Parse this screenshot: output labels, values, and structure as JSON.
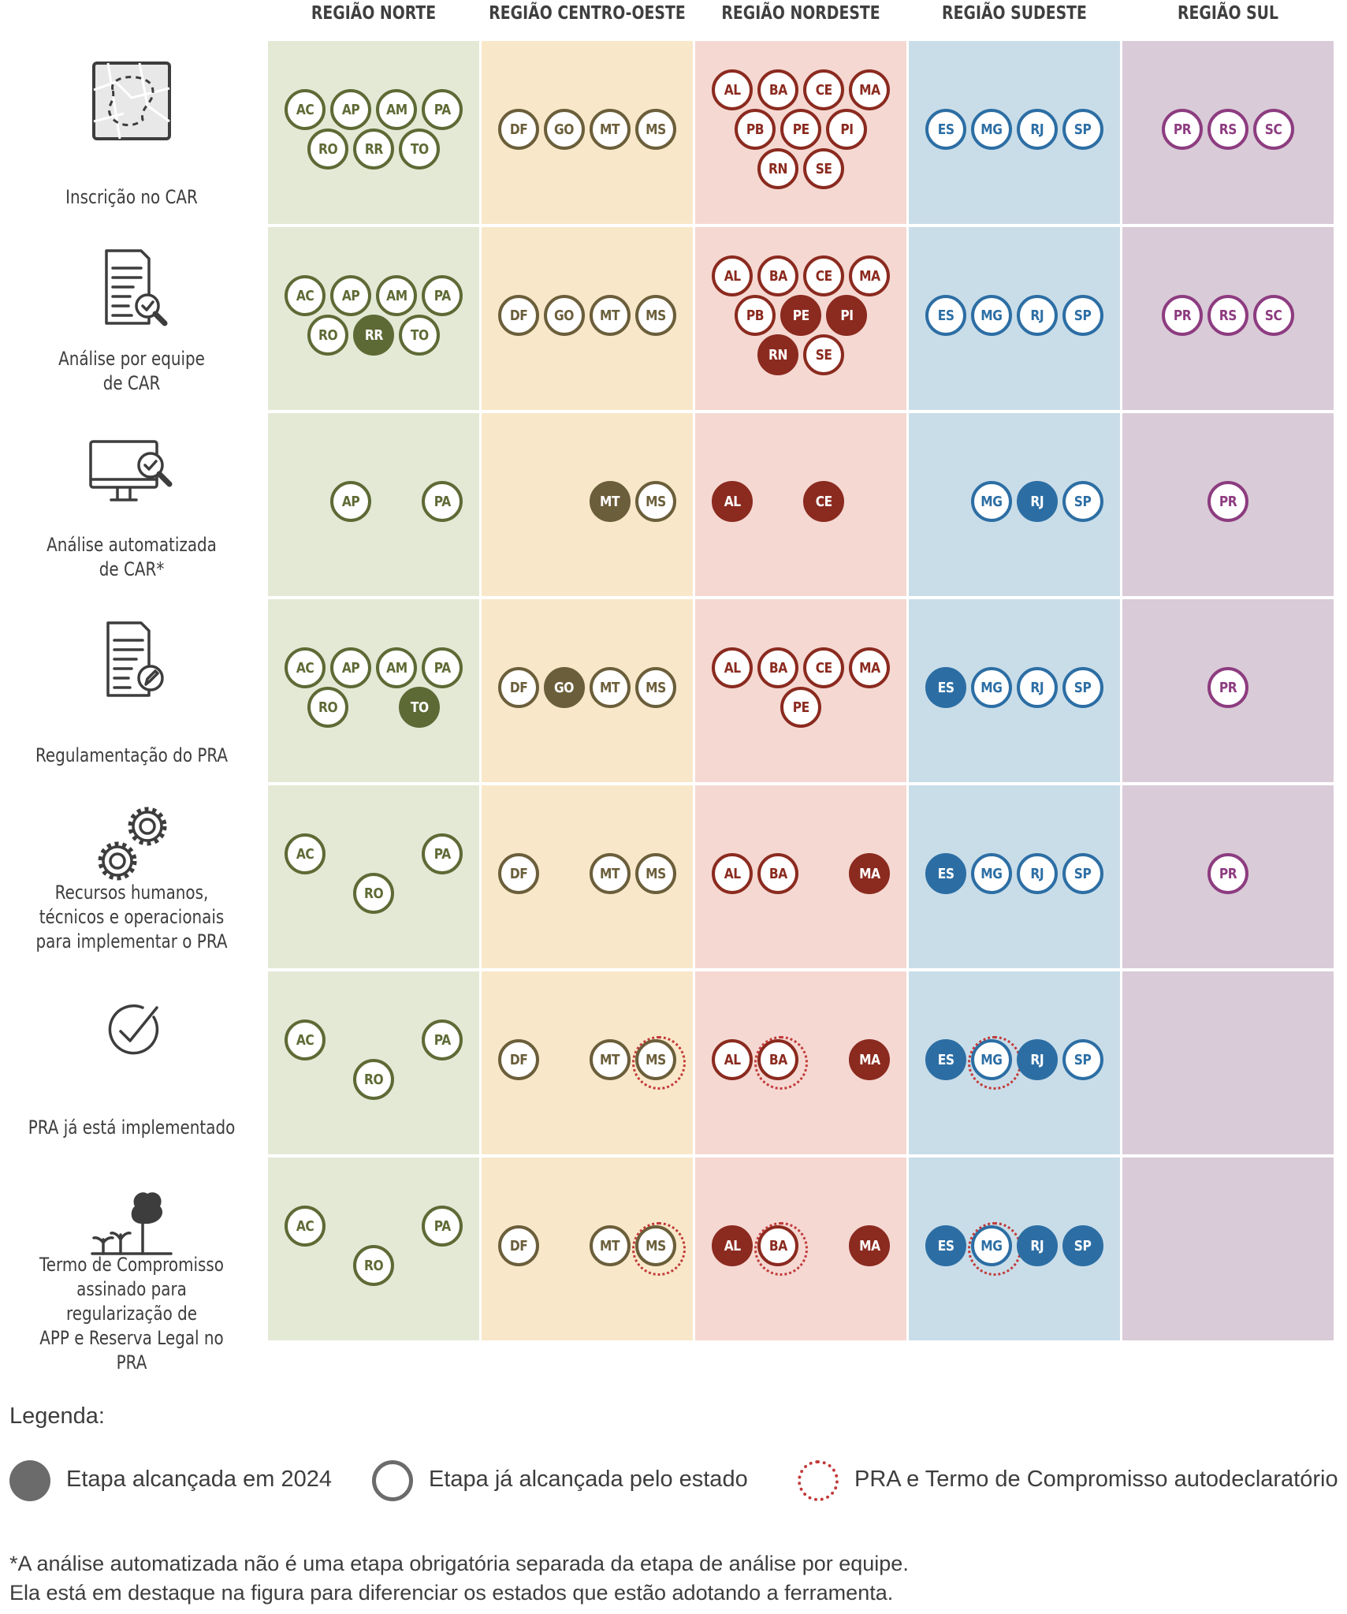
{
  "regions": [
    {
      "id": "norte",
      "label": "REGIÃO NORTE",
      "bg": "#e4e9d6",
      "color": "#5e6a35",
      "filled": "#5e6a35"
    },
    {
      "id": "centro",
      "label": "REGIÃO CENTRO-OESTE",
      "bg": "#f8e8c9",
      "color": "#6b5e3a",
      "filled": "#6b5e3a"
    },
    {
      "id": "nordeste",
      "label": "REGIÃO NORDESTE",
      "bg": "#f5d8d2",
      "color": "#8b2a1f",
      "filled": "#8b2a1f"
    },
    {
      "id": "sudeste",
      "label": "REGIÃO SUDESTE",
      "bg": "#c9dde8",
      "color": "#2c6ea4",
      "filled": "#2c6ea4"
    },
    {
      "id": "sul",
      "label": "REGIÃO SUL",
      "bg": "#d9cbd7",
      "color": "#8d3c80",
      "filled": "#8d3c80"
    }
  ],
  "stages": [
    {
      "label": "Inscrição no CAR",
      "icon": "map-icon",
      "cells": {
        "norte": {
          "rows": [
            [
              "AC",
              "AP",
              "AM",
              "PA"
            ],
            [
              "RO",
              "RR",
              "TO"
            ]
          ]
        },
        "centro": {
          "rows": [
            [
              "DF",
              "GO",
              "MT",
              "MS"
            ]
          ]
        },
        "nordeste": {
          "rows": [
            [
              "AL",
              "BA",
              "CE",
              "MA"
            ],
            [
              "PB",
              "PE",
              "PI"
            ],
            [
              "RN",
              "SE"
            ]
          ]
        },
        "sudeste": {
          "rows": [
            [
              "ES",
              "MG",
              "RJ",
              "SP"
            ]
          ]
        },
        "sul": {
          "rows": [
            [
              "PR",
              "RS",
              "SC"
            ]
          ]
        }
      }
    },
    {
      "label": "Análise por equipe\nde CAR",
      "icon": "document-search-icon",
      "cells": {
        "norte": {
          "rows": [
            [
              "AC",
              "AP",
              "AM",
              "PA"
            ],
            [
              "RO",
              "RR",
              "TO"
            ]
          ],
          "filled": [
            "RR"
          ]
        },
        "centro": {
          "rows": [
            [
              "DF",
              "GO",
              "MT",
              "MS"
            ]
          ]
        },
        "nordeste": {
          "rows": [
            [
              "AL",
              "BA",
              "CE",
              "MA"
            ],
            [
              "PB",
              "PE",
              "PI"
            ],
            [
              "RN",
              "SE"
            ]
          ],
          "filled": [
            "PE",
            "PI",
            "RN"
          ]
        },
        "sudeste": {
          "rows": [
            [
              "ES",
              "MG",
              "RJ",
              "SP"
            ]
          ]
        },
        "sul": {
          "rows": [
            [
              "PR",
              "RS",
              "SC"
            ]
          ]
        }
      }
    },
    {
      "label": "Análise automatizada\nde CAR*",
      "icon": "computer-search-icon",
      "cells": {
        "norte": {
          "rows": [
            [
              "",
              "AP",
              "",
              "PA"
            ]
          ]
        },
        "centro": {
          "rows": [
            [
              "",
              "",
              "MT",
              "MS"
            ]
          ],
          "filled": [
            "MT"
          ],
          "shift": 1
        },
        "nordeste": {
          "rows": [
            [
              "AL",
              "",
              "CE",
              ""
            ]
          ],
          "filled": [
            "AL",
            "CE"
          ]
        },
        "sudeste": {
          "rows": [
            [
              "",
              "MG",
              "RJ",
              "SP"
            ]
          ],
          "filled": [
            "RJ"
          ],
          "shift": 1
        },
        "sul": {
          "rows": [
            [
              "PR"
            ]
          ],
          "shift": 1
        }
      }
    },
    {
      "label": "Regulamentação do PRA",
      "icon": "document-pencil-icon",
      "cells": {
        "norte": {
          "rows": [
            [
              "AC",
              "AP",
              "AM",
              "PA"
            ],
            [
              "RO",
              "",
              "TO"
            ]
          ],
          "filled": [
            "TO"
          ],
          "shift": 0.35
        },
        "centro": {
          "rows": [
            [
              "DF",
              "GO",
              "MT",
              "MS"
            ]
          ],
          "filled": [
            "GO"
          ]
        },
        "nordeste": {
          "rows": [
            [
              "AL",
              "BA",
              "CE",
              "MA"
            ],
            [
              "",
              "PE",
              ""
            ]
          ]
        },
        "sudeste": {
          "rows": [
            [
              "ES",
              "MG",
              "RJ",
              "SP"
            ]
          ],
          "filled": [
            "ES"
          ]
        },
        "sul": {
          "rows": [
            [
              "PR"
            ]
          ]
        }
      }
    },
    {
      "label": "Recursos humanos,\ntécnicos e operacionais\npara implementar o PRA",
      "icon": "gears-icon",
      "cells": {
        "norte": {
          "rows": [
            [
              "AC",
              "",
              "",
              "PA"
            ],
            [
              "RO"
            ]
          ]
        },
        "centro": {
          "rows": [
            [
              "DF",
              "",
              "MT",
              "MS"
            ]
          ]
        },
        "nordeste": {
          "rows": [
            [
              "AL",
              "BA",
              "",
              "MA"
            ]
          ],
          "filled": [
            "MA"
          ]
        },
        "sudeste": {
          "rows": [
            [
              "ES",
              "MG",
              "RJ",
              "SP"
            ]
          ],
          "filled": [
            "ES"
          ]
        },
        "sul": {
          "rows": [
            [
              "PR"
            ]
          ]
        }
      }
    },
    {
      "label": "PRA já está implementado",
      "icon": "check-circle-icon",
      "cells": {
        "norte": {
          "rows": [
            [
              "AC",
              "",
              "",
              "PA"
            ],
            [
              "RO"
            ]
          ]
        },
        "centro": {
          "rows": [
            [
              "DF",
              "",
              "MT",
              "MS"
            ]
          ],
          "dotted": [
            "MS"
          ]
        },
        "nordeste": {
          "rows": [
            [
              "AL",
              "BA",
              "",
              "MA"
            ]
          ],
          "filled": [
            "MA"
          ],
          "dotted": [
            "BA"
          ]
        },
        "sudeste": {
          "rows": [
            [
              "ES",
              "MG",
              "RJ",
              "SP"
            ]
          ],
          "filled": [
            "ES",
            "RJ"
          ],
          "dotted": [
            "MG"
          ]
        },
        "sul": {
          "rows": []
        }
      }
    },
    {
      "label": "Termo de Compromisso\nassinado para regularização de\nAPP e Reserva Legal no PRA",
      "icon": "tree-sprouts-icon",
      "cells": {
        "norte": {
          "rows": [
            [
              "AC",
              "",
              "",
              "PA"
            ],
            [
              "RO"
            ]
          ]
        },
        "centro": {
          "rows": [
            [
              "DF",
              "",
              "MT",
              "MS"
            ]
          ],
          "dotted": [
            "MS"
          ]
        },
        "nordeste": {
          "rows": [
            [
              "AL",
              "BA",
              "",
              "MA"
            ]
          ],
          "filled": [
            "AL",
            "MA"
          ],
          "dotted": [
            "BA"
          ]
        },
        "sudeste": {
          "rows": [
            [
              "ES",
              "MG",
              "RJ",
              "SP"
            ]
          ],
          "filled": [
            "ES",
            "RJ",
            "SP"
          ],
          "dotted": [
            "MG"
          ]
        },
        "sul": {
          "rows": []
        }
      }
    }
  ],
  "legend": {
    "title": "Legenda:",
    "items": [
      {
        "kind": "filled",
        "label": "Etapa alcançada em 2024",
        "color": "#6b6b6b"
      },
      {
        "kind": "outline",
        "label": "Etapa já alcançada pelo estado",
        "color": "#6b6b6b"
      },
      {
        "kind": "dotted",
        "label": "PRA e Termo de Compromisso autodeclaratório",
        "color": "#c23a3a"
      }
    ]
  },
  "footnote": "*A análise automatizada não é uma etapa obrigatória separada da etapa de análise por equipe.\nEla está em destaque na figura para diferenciar os estados que estão adotando a ferramenta."
}
